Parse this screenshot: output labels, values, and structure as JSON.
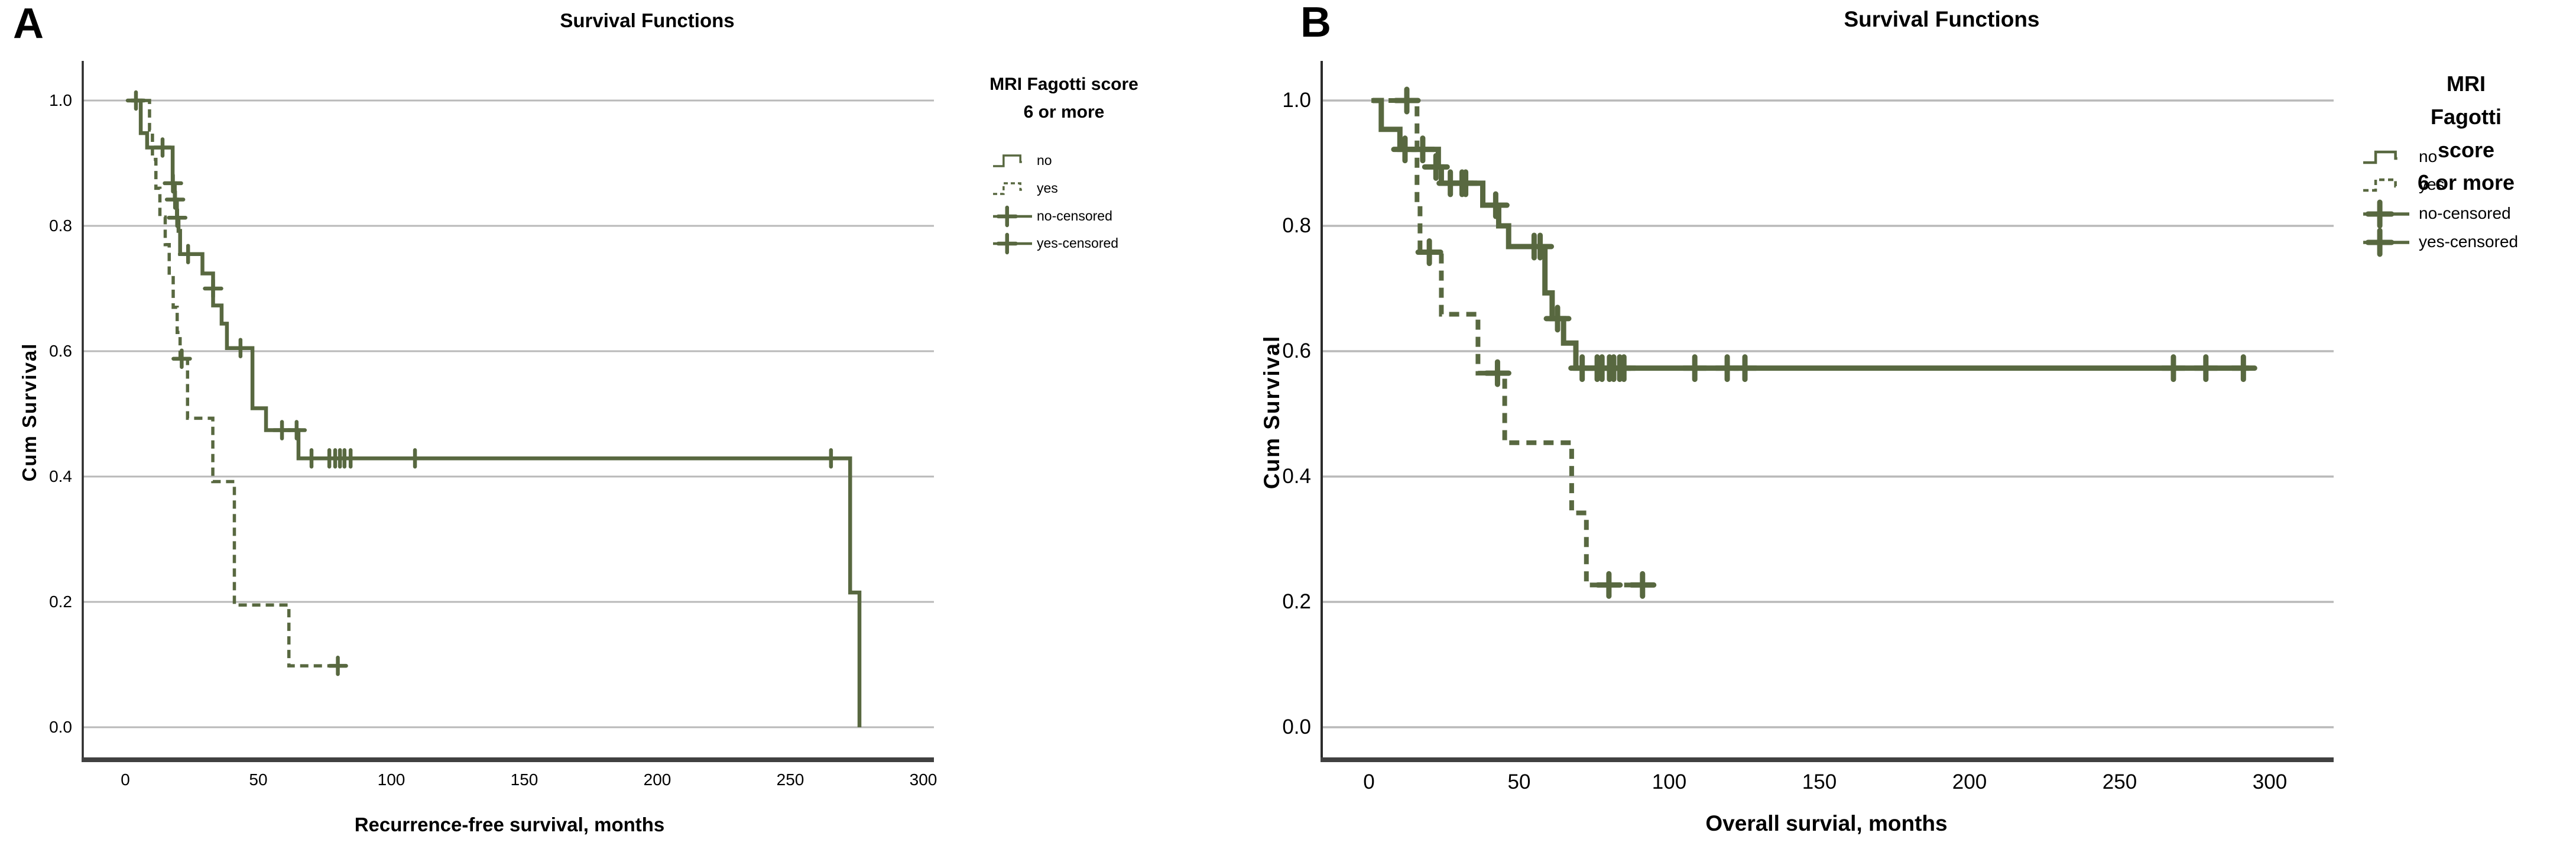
{
  "figure": {
    "background": "#ffffff"
  },
  "colors": {
    "curve": "#586840",
    "grid": "#b9b9b9",
    "axis_x": "#404040",
    "axis_y": "#2b2b2b",
    "text": "#000000"
  },
  "panels": [
    {
      "letter": "A",
      "y_tick_labels": [
        "1.0",
        "0.8",
        "0.6",
        "0.4",
        "0.2",
        "0.0"
      ],
      "x_tick_labels": [
        "0",
        "50",
        "100",
        "150",
        "200",
        "250",
        "300"
      ],
      "legend": {
        "title_lines": [
          "MRI Fagotti score",
          "6 or more"
        ],
        "items": [
          {
            "label": "no",
            "swatch": "step-solid"
          },
          {
            "label": "yes",
            "swatch": "step-dashed"
          },
          {
            "label": "no-censored",
            "swatch": "censor"
          },
          {
            "label": "yes-censored",
            "swatch": "censor"
          }
        ]
      }
    },
    {
      "letter": "B",
      "y_tick_labels": [
        "1.0",
        "0.8",
        "0.6",
        "0.4",
        "0.2",
        "0.0"
      ],
      "x_tick_labels": [
        "0",
        "50",
        "100",
        "150",
        "200",
        "250",
        "300"
      ],
      "legend": {
        "title_lines": [
          "MRI Fagotti score",
          "6 or more"
        ],
        "items": [
          {
            "label": "no",
            "swatch": "step-solid"
          },
          {
            "label": "yes",
            "swatch": "step-dashed"
          },
          {
            "label": "no-censored",
            "swatch": "censor"
          },
          {
            "label": "yes-censored",
            "swatch": "censor"
          }
        ]
      }
    }
  ],
  "chart_data": [
    {
      "type": "line",
      "subtype": "kaplan_meier_step",
      "panel": "A",
      "title": "Survival Functions",
      "xlabel": "Recurrence-free survival, months",
      "ylabel": "Cum Survival",
      "x_ticks": [
        0,
        50,
        100,
        150,
        200,
        250,
        300
      ],
      "y_ticks": [
        1.0,
        0.8,
        0.6,
        0.4,
        0.2,
        0.0
      ],
      "xlim": [
        -16,
        304
      ],
      "ylim": [
        0,
        1
      ],
      "grid": "horizontal",
      "legend_position": "right",
      "legend_title": "MRI Fagotti score 6 or more",
      "series": [
        {
          "name": "no",
          "line": "solid",
          "steps": [
            [
              2.2,
              1.0
            ],
            [
              5.8,
              0.948
            ],
            [
              8.2,
              0.925
            ],
            [
              17.8,
              0.868
            ],
            [
              18.6,
              0.842
            ],
            [
              19.4,
              0.813
            ],
            [
              20.0,
              0.792
            ],
            [
              20.6,
              0.755
            ],
            [
              29.0,
              0.724
            ],
            [
              33.0,
              0.673
            ],
            [
              36.2,
              0.644
            ],
            [
              38.2,
              0.605
            ],
            [
              47.8,
              0.509
            ],
            [
              52.9,
              0.474
            ],
            [
              65.1,
              0.429
            ],
            [
              272.5,
              0.215
            ],
            [
              276.0,
              0.0
            ]
          ],
          "end": 276.0,
          "censored": [
            [
              4.0,
              1.0
            ],
            [
              14.0,
              0.925
            ],
            [
              17.9,
              0.868
            ],
            [
              18.7,
              0.842
            ],
            [
              19.5,
              0.813
            ],
            [
              23.6,
              0.755
            ],
            [
              33.0,
              0.7
            ],
            [
              43.3,
              0.605
            ],
            [
              58.9,
              0.474
            ],
            [
              64.4,
              0.474
            ],
            [
              70.0,
              0.429
            ],
            [
              76.7,
              0.429
            ],
            [
              78.9,
              0.429
            ],
            [
              80.7,
              0.429
            ],
            [
              82.4,
              0.429
            ],
            [
              84.7,
              0.429
            ],
            [
              108.9,
              0.429
            ],
            [
              265.3,
              0.429
            ]
          ]
        },
        {
          "name": "yes",
          "line": "dashed",
          "steps": [
            [
              7.3,
              1.0
            ],
            [
              9.1,
              0.953
            ],
            [
              10.2,
              0.906
            ],
            [
              11.5,
              0.86
            ],
            [
              13.0,
              0.814
            ],
            [
              15.0,
              0.77
            ],
            [
              16.5,
              0.72
            ],
            [
              18.0,
              0.67
            ],
            [
              19.5,
              0.63
            ],
            [
              20.6,
              0.588
            ],
            [
              23.4,
              0.493
            ],
            [
              32.9,
              0.392
            ],
            [
              41.0,
              0.195
            ],
            [
              61.5,
              0.098
            ]
          ],
          "end": 80.5,
          "censored": [
            [
              21.2,
              0.588
            ],
            [
              79.9,
              0.098
            ]
          ]
        }
      ]
    },
    {
      "type": "line",
      "subtype": "kaplan_meier_step",
      "panel": "B",
      "title": "Survival Functions",
      "xlabel": "Overall survial, months",
      "ylabel": "Cum Survival",
      "x_ticks": [
        0,
        50,
        100,
        150,
        200,
        250,
        300
      ],
      "y_ticks": [
        1.0,
        0.8,
        0.6,
        0.4,
        0.2,
        0.0
      ],
      "xlim": [
        -16,
        322
      ],
      "ylim": [
        0,
        1
      ],
      "grid": "horizontal",
      "legend_position": "right",
      "legend_title": "MRI Fagotti score 6 or more",
      "series": [
        {
          "name": "no",
          "line": "solid",
          "steps": [
            [
              1.2,
              1.0
            ],
            [
              4.1,
              0.954
            ],
            [
              10.3,
              0.922
            ],
            [
              23.1,
              0.894
            ],
            [
              24.1,
              0.868
            ],
            [
              37.9,
              0.833
            ],
            [
              43.2,
              0.8
            ],
            [
              46.5,
              0.767
            ],
            [
              58.6,
              0.693
            ],
            [
              61.0,
              0.652
            ],
            [
              64.8,
              0.613
            ],
            [
              68.9,
              0.573
            ]
          ],
          "end": 293.0,
          "censored": [
            [
              12.0,
              0.922
            ],
            [
              17.9,
              0.922
            ],
            [
              22.3,
              0.894
            ],
            [
              27.1,
              0.868
            ],
            [
              31.0,
              0.868
            ],
            [
              32.2,
              0.868
            ],
            [
              42.2,
              0.833
            ],
            [
              55.0,
              0.767
            ],
            [
              57.0,
              0.767
            ],
            [
              62.8,
              0.652
            ],
            [
              71.0,
              0.573
            ],
            [
              76.0,
              0.573
            ],
            [
              77.6,
              0.573
            ],
            [
              80.1,
              0.573
            ],
            [
              81.5,
              0.573
            ],
            [
              83.5,
              0.573
            ],
            [
              84.9,
              0.573
            ],
            [
              108.5,
              0.573
            ],
            [
              119.3,
              0.573
            ],
            [
              125.2,
              0.573
            ],
            [
              267.9,
              0.573
            ],
            [
              278.7,
              0.573
            ],
            [
              291.2,
              0.573
            ]
          ]
        },
        {
          "name": "yes",
          "line": "dashed",
          "steps": [
            [
              0.8,
              1.0
            ],
            [
              16.0,
              0.835
            ],
            [
              17.0,
              0.758
            ],
            [
              24.1,
              0.659
            ],
            [
              36.3,
              0.565
            ],
            [
              45.2,
              0.454
            ],
            [
              67.5,
              0.342
            ],
            [
              72.4,
              0.227
            ]
          ],
          "end": 94.0,
          "censored": [
            [
              12.6,
              1.0
            ],
            [
              20.1,
              0.758
            ],
            [
              42.8,
              0.565
            ],
            [
              79.9,
              0.227
            ],
            [
              91.1,
              0.227
            ]
          ]
        }
      ]
    }
  ]
}
